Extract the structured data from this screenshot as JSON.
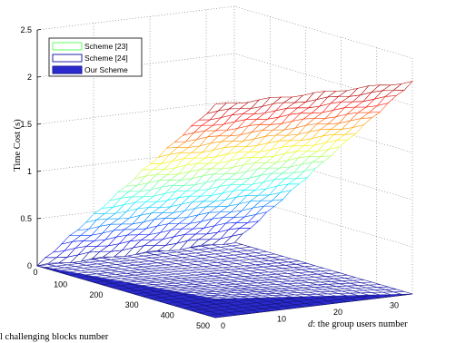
{
  "chart_data": {
    "type": "surface3d",
    "xlabel": "challenging blocks number",
    "xlabel_prefix": "l",
    "ylabel_var": "d",
    "ylabel_rest": ": the group users number",
    "zlabel": "Time Cost (s)",
    "x_ticks": [
      "100",
      "200",
      "300",
      "400",
      "500"
    ],
    "y_ticks": [
      "0",
      "10",
      "20",
      "30"
    ],
    "z_ticks": [
      "0",
      "0.5",
      "1",
      "1.5",
      "2",
      "2.5"
    ],
    "x_range": [
      0,
      500
    ],
    "y_range": [
      0,
      35
    ],
    "z_range": [
      0,
      2.5
    ],
    "grid": true,
    "legend_position": "top-left",
    "series": [
      {
        "name": "Scheme [23]",
        "legend_color": "#66ff66",
        "z_at_x_max": 2.25,
        "z_at_x_min": 0.0,
        "depends_on_y": false,
        "colormap": "jet"
      },
      {
        "name": "Scheme [24]",
        "legend_color": "#2222aa",
        "z_at_x_max": 0.22,
        "z_at_x_min": 0.0,
        "depends_on_y": true
      },
      {
        "name": "Our Scheme",
        "legend_color": "#2a2acc",
        "z_at_x_max": 0.0,
        "z_at_x_min": 0.0,
        "depends_on_y": false
      }
    ]
  }
}
